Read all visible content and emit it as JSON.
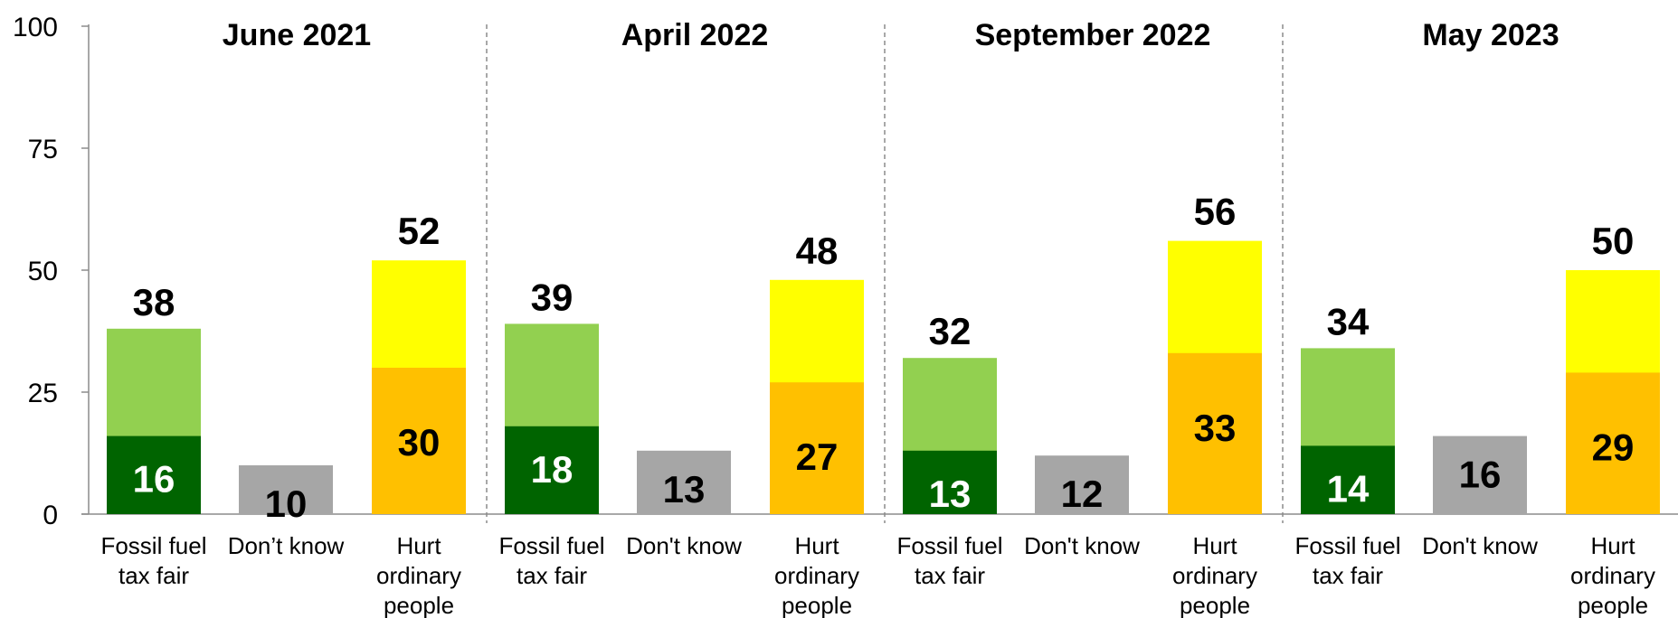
{
  "chart_data": {
    "type": "bar",
    "ylim": [
      0,
      100
    ],
    "yticks": [
      0,
      25,
      50,
      75,
      100
    ],
    "grid": false,
    "colors": {
      "fair_total": "#92d050",
      "fair_strong": "#006400",
      "dont_know": "#a6a6a6",
      "hurt_total": "#ffff00",
      "hurt_strong": "#ffc000",
      "separator": "#8c8c8c"
    },
    "panels": [
      {
        "title": "June 2021",
        "categories": [
          "Fossil fuel tax fair",
          "Don’t know",
          "Hurt ordinary people"
        ],
        "fair_total": 38,
        "fair_strong": 16,
        "dont_know": 10,
        "hurt_total": 52,
        "hurt_strong": 30
      },
      {
        "title": "April 2022",
        "categories": [
          "Fossil fuel tax fair",
          "Don't know",
          "Hurt ordinary people"
        ],
        "fair_total": 39,
        "fair_strong": 18,
        "dont_know": 13,
        "hurt_total": 48,
        "hurt_strong": 27
      },
      {
        "title": "September 2022",
        "categories": [
          "Fossil fuel tax fair",
          "Don't know",
          "Hurt ordinary people"
        ],
        "fair_total": 32,
        "fair_strong": 13,
        "dont_know": 12,
        "hurt_total": 56,
        "hurt_strong": 33
      },
      {
        "title": "May 2023",
        "categories": [
          "Fossil fuel tax fair",
          "Don't know",
          "Hurt ordinary people"
        ],
        "fair_total": 34,
        "fair_strong": 14,
        "dont_know": 16,
        "hurt_total": 50,
        "hurt_strong": 29
      }
    ]
  }
}
